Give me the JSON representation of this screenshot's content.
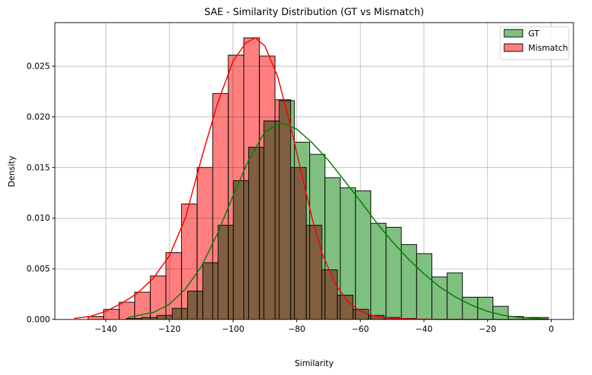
{
  "chart_data": {
    "type": "histogram",
    "title": "SAE - Similarity Distribution (GT vs Mismatch)",
    "xlabel": "Similarity",
    "ylabel": "Density",
    "xlim": [
      -156,
      7
    ],
    "ylim": [
      0,
      0.0293
    ],
    "x_ticks": [
      -140,
      -120,
      -100,
      -80,
      -60,
      -40,
      -20,
      0
    ],
    "x_tick_labels": [
      "−140",
      "−120",
      "−100",
      "−80",
      "−60",
      "−40",
      "−20",
      "0"
    ],
    "y_ticks": [
      0,
      0.005,
      0.01,
      0.015,
      0.02,
      0.025
    ],
    "y_tick_labels": [
      "0.000",
      "0.005",
      "0.010",
      "0.015",
      "0.020",
      "0.025"
    ],
    "grid": true,
    "legend_position": "top-right",
    "series": [
      {
        "name": "GT",
        "color": "#008000",
        "fill": "#7fbf7f",
        "bin_edges": [
          -133.5,
          -128.7,
          -123.9,
          -119.1,
          -114.3,
          -109.5,
          -104.7,
          -99.9,
          -95.1,
          -90.3,
          -85.5,
          -80.7,
          -75.9,
          -71.1,
          -66.3,
          -61.5,
          -56.7,
          -51.9,
          -47.1,
          -42.3,
          -37.5,
          -32.7,
          -27.9,
          -23.1,
          -18.3,
          -13.5,
          -8.7,
          -3.9,
          -0.9
        ],
        "values": [
          0.0001,
          0.0002,
          0.0004,
          0.0011,
          0.0028,
          0.0056,
          0.0093,
          0.0137,
          0.017,
          0.0196,
          0.0216,
          0.0175,
          0.0163,
          0.014,
          0.013,
          0.0127,
          0.0095,
          0.0091,
          0.0074,
          0.0065,
          0.0042,
          0.0046,
          0.0022,
          0.0022,
          0.0013,
          0.0003,
          0.0002,
          0.0002
        ],
        "kde": {
          "x": [
            -133,
            -125,
            -120,
            -115,
            -110,
            -105,
            -100,
            -95,
            -90,
            -85,
            -80,
            -75,
            -70,
            -65,
            -60,
            -55,
            -50,
            -45,
            -40,
            -35,
            -30,
            -25,
            -20,
            -15,
            -10,
            -5,
            -1
          ],
          "y": [
            0.0002,
            0.0007,
            0.0015,
            0.003,
            0.0052,
            0.0084,
            0.0122,
            0.0158,
            0.0185,
            0.0194,
            0.0188,
            0.0174,
            0.0157,
            0.0137,
            0.0117,
            0.0096,
            0.0077,
            0.006,
            0.0045,
            0.0032,
            0.0022,
            0.0014,
            0.0008,
            0.0004,
            0.0002,
            0.0001,
            4e-05
          ]
        }
      },
      {
        "name": "Mismatch",
        "color": "#ff0000",
        "fill": "#ff7f7f",
        "bin_edges": [
          -150.5,
          -145.6,
          -140.7,
          -135.8,
          -130.9,
          -126.0,
          -121.1,
          -116.2,
          -111.3,
          -106.4,
          -101.5,
          -96.6,
          -91.7,
          -86.8,
          -81.9,
          -77.0,
          -72.1,
          -67.2,
          -62.3,
          -57.4,
          -52.5,
          -47.6,
          -42.7,
          -37.8,
          -32.9,
          -28.0,
          -23.1,
          -18.2,
          -13.3,
          -8.4,
          -3.5,
          -0.5
        ],
        "values": [
          0.0,
          0.0003,
          0.001,
          0.0017,
          0.0027,
          0.0043,
          0.0066,
          0.0114,
          0.015,
          0.0223,
          0.0261,
          0.0278,
          0.026,
          0.0217,
          0.015,
          0.0093,
          0.0049,
          0.0024,
          0.001,
          0.0004,
          0.0002,
          0.0001,
          0.0,
          0.0,
          0.0,
          0.0,
          0.0,
          0.0,
          0.0,
          0.0,
          0.0
        ],
        "kde": {
          "x": [
            -150,
            -145,
            -140,
            -135,
            -130,
            -125,
            -120,
            -115,
            -110,
            -105,
            -100,
            -96,
            -93,
            -90,
            -86,
            -82,
            -78,
            -75,
            -72,
            -68,
            -64,
            -60,
            -55,
            -50,
            -45,
            -40,
            -30,
            -20,
            -10,
            -1
          ],
          "y": [
            0.0001,
            0.0003,
            0.0008,
            0.0016,
            0.0026,
            0.0041,
            0.0063,
            0.01,
            0.0158,
            0.0212,
            0.0255,
            0.0273,
            0.0278,
            0.027,
            0.024,
            0.0192,
            0.0138,
            0.0098,
            0.0065,
            0.0036,
            0.0018,
            0.0008,
            0.0003,
            0.0001,
            5e-05,
            2e-05,
            1e-05,
            0.0,
            0.0,
            0.0
          ]
        }
      }
    ]
  }
}
